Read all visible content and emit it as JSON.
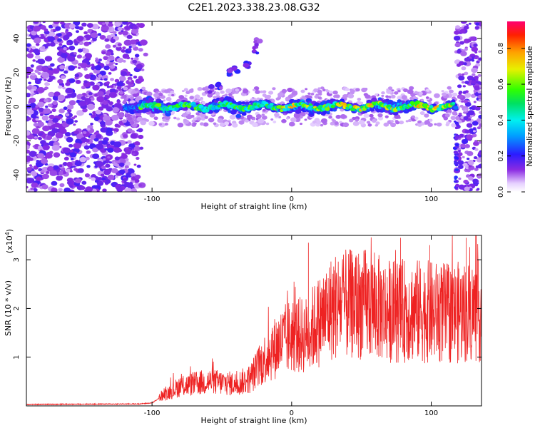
{
  "title": "C2E1.2023.338.23.08.G32",
  "colors": {
    "snr_line": "#ee2222",
    "background": "#ffffff",
    "axis": "#000000"
  },
  "chart_data": [
    {
      "type": "heatmap",
      "xlabel": "Height of straight line (km)",
      "ylabel": "Frequency (Hz)",
      "xlim": [
        -190,
        136
      ],
      "ylim": [
        -50,
        50
      ],
      "x_ticks": [
        -100,
        0,
        100
      ],
      "x_tick_labels": [
        "-100",
        "0",
        "100"
      ],
      "y_ticks": [
        -40,
        -20,
        0,
        20,
        40
      ],
      "y_tick_labels": [
        "-40",
        "-20",
        "0",
        "20",
        "40"
      ],
      "colorbar": {
        "label": "Normalized spectral amplitude",
        "range": [
          0,
          0.95
        ],
        "ticks": [
          0.0,
          0.2,
          0.4,
          0.6,
          0.8
        ],
        "tick_labels": [
          "0.0",
          "0.2",
          "0.4",
          "0.6",
          "0.8"
        ]
      },
      "features": {
        "noise_left_x": [
          -190,
          -112
        ],
        "noise_right_x": [
          118,
          136
        ],
        "ridge_x": [
          -120,
          118
        ],
        "ridge_frequency_hz": 0,
        "secondary_trace": [
          [
            -58,
            10
          ],
          [
            -52,
            12
          ],
          [
            -44,
            20
          ],
          [
            -40,
            21
          ],
          [
            -32,
            24
          ],
          [
            -26,
            33
          ],
          [
            -24,
            38
          ]
        ]
      },
      "grid": false
    },
    {
      "type": "line",
      "xlabel": "Height of straight line (km)",
      "ylabel": "SNR (10 * v/v)",
      "scale_note": "(x10",
      "scale_exp": "4",
      "scale_close": ")",
      "xlim": [
        -190,
        136
      ],
      "ylim": [
        0,
        3.5
      ],
      "x_ticks": [
        -100,
        0,
        100
      ],
      "x_tick_labels": [
        "-100",
        "0",
        "100"
      ],
      "y_ticks": [
        1,
        2,
        3
      ],
      "y_tick_labels": [
        "1",
        "2",
        "3"
      ],
      "series_envelope": [
        {
          "x": -190,
          "y": 0.03
        },
        {
          "x": -110,
          "y": 0.04
        },
        {
          "x": -100,
          "y": 0.06
        },
        {
          "x": -90,
          "y": 0.25
        },
        {
          "x": -80,
          "y": 0.4
        },
        {
          "x": -60,
          "y": 0.5
        },
        {
          "x": -40,
          "y": 0.45
        },
        {
          "x": -30,
          "y": 0.55
        },
        {
          "x": -20,
          "y": 0.95
        },
        {
          "x": -10,
          "y": 1.25
        },
        {
          "x": 0,
          "y": 1.45
        },
        {
          "x": 10,
          "y": 1.45
        },
        {
          "x": 20,
          "y": 1.75
        },
        {
          "x": 30,
          "y": 2.05
        },
        {
          "x": 50,
          "y": 2.1
        },
        {
          "x": 70,
          "y": 1.95
        },
        {
          "x": 90,
          "y": 1.95
        },
        {
          "x": 110,
          "y": 1.9
        },
        {
          "x": 136,
          "y": 1.95
        }
      ],
      "peaks": [
        {
          "x": 12,
          "y": 3.35
        },
        {
          "x": 53,
          "y": 3.2
        },
        {
          "x": 78,
          "y": 3.45
        },
        {
          "x": 99,
          "y": 3.3
        },
        {
          "x": 125,
          "y": 3.45
        }
      ],
      "grid": false
    }
  ]
}
